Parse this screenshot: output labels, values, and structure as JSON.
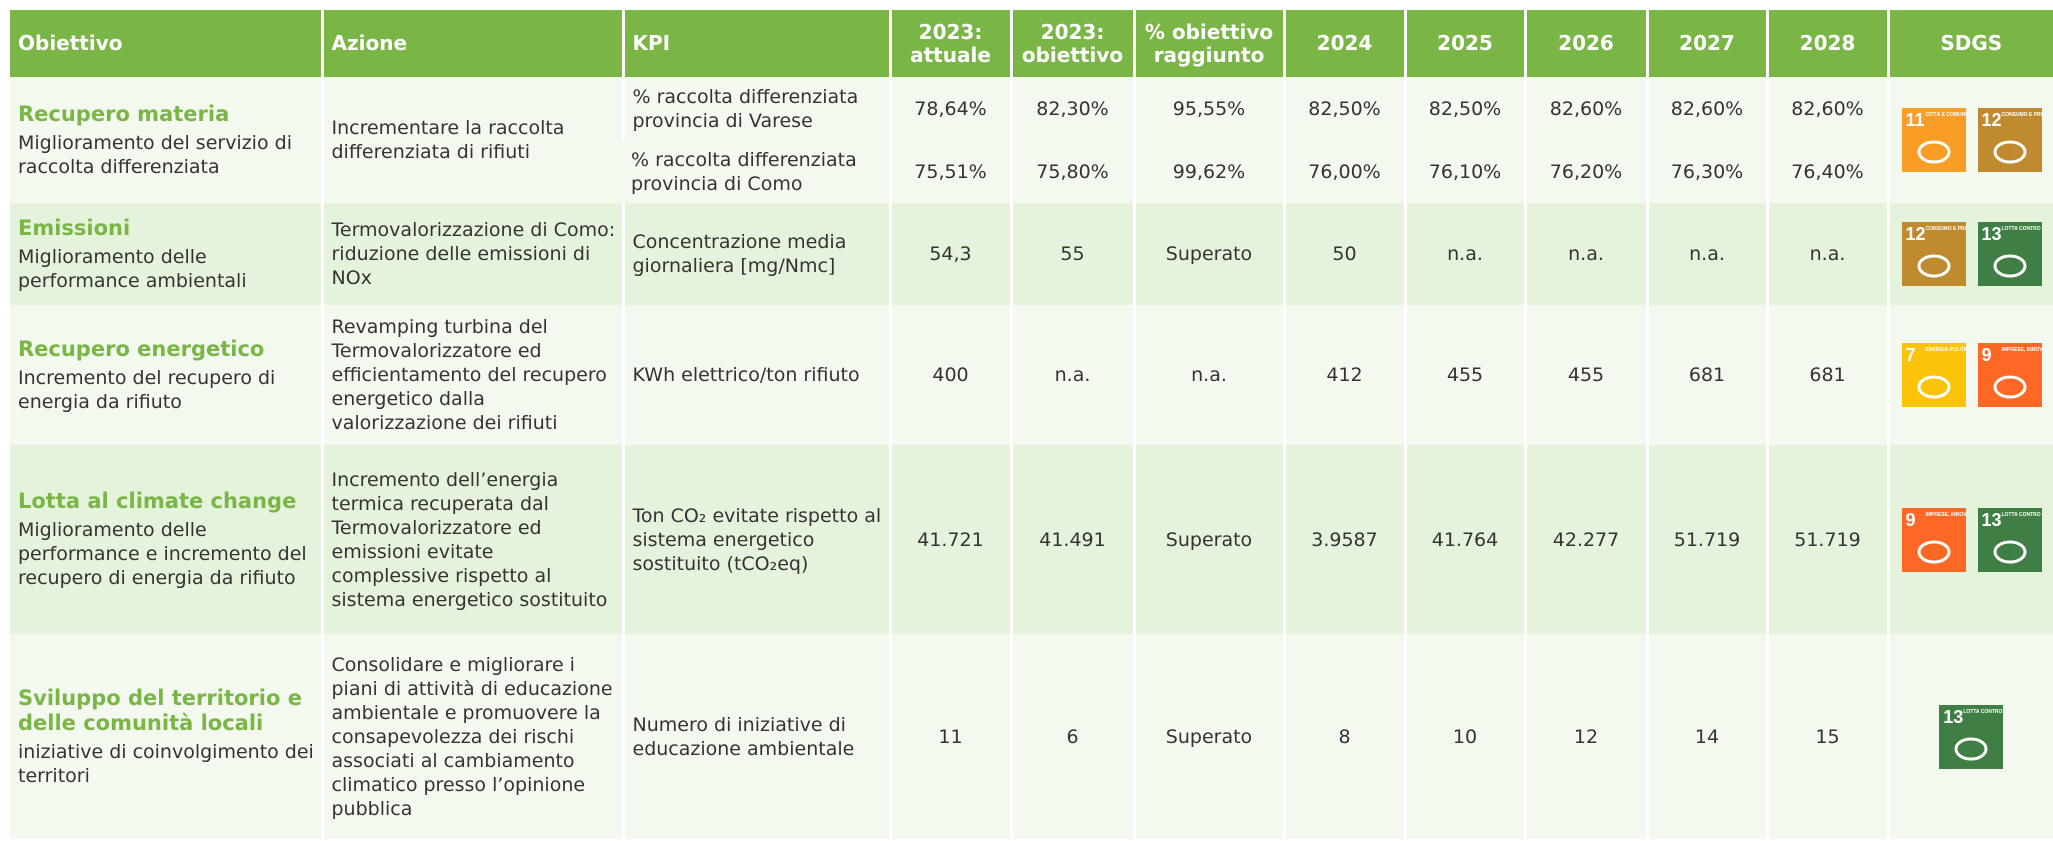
{
  "table": {
    "header": [
      "Obiettivo",
      "Azione",
      "KPI",
      "2023: attuale",
      "2023: obiettivo",
      "% obiettivo raggiunto",
      "2024",
      "2025",
      "2026",
      "2027",
      "2028",
      "SDGS"
    ],
    "rows": [
      {
        "title": "Recupero materia",
        "description": "Miglioramento del servizio di raccolta differenziata",
        "action": "Incrementare la raccolta differenziata di rifiuti",
        "kpis": [
          {
            "kpi": "% raccolta differenziata provincia di Varese",
            "values": [
              "78,64%",
              "82,30%",
              "95,55%",
              "82,50%",
              "82,50%",
              "82,60%",
              "82,60%",
              "82,60%"
            ]
          },
          {
            "kpi": "% raccolta differenziata provincia di Como",
            "values": [
              "75,51%",
              "75,80%",
              "99,62%",
              "76,00%",
              "76,10%",
              "76,20%",
              "76,30%",
              "76,40%"
            ]
          }
        ],
        "sdgs": [
          {
            "number": "11",
            "label": "CITTÀ E COMUNITÀ SOSTENIBILI",
            "color": "#f99d26"
          },
          {
            "number": "12",
            "label": "CONSUMO E PRODUZIONE RESPONSABILI",
            "color": "#bf8b2e"
          }
        ]
      },
      {
        "title": "Emissioni",
        "description": "Miglioramento delle performance ambientali",
        "action": "Termovalorizzazione di Como: riduzione delle emissioni di NOx",
        "kpis": [
          {
            "kpi": "Concentrazione media giornaliera [mg/Nmc]",
            "values": [
              "54,3",
              "55",
              "Superato",
              "50",
              "n.a.",
              "n.a.",
              "n.a.",
              "n.a."
            ]
          }
        ],
        "sdgs": [
          {
            "number": "12",
            "label": "CONSUMO E PRODUZIONE RESPONSABILI",
            "color": "#bf8b2e"
          },
          {
            "number": "13",
            "label": "LOTTA CONTRO IL CAMBIAMENTO CLIMATICO",
            "color": "#3f7e44"
          }
        ]
      },
      {
        "title": "Recupero energetico",
        "description": "Incremento del recupero di energia da rifiuto",
        "action": "Revamping turbina del Termovalorizzatore ed efficientamento del recupero energetico dalla valorizzazione dei rifiuti",
        "kpis": [
          {
            "kpi": "KWh elettrico/ton rifiuto",
            "values": [
              "400",
              "n.a.",
              "n.a.",
              "412",
              "455",
              "455",
              "681",
              "681"
            ]
          }
        ],
        "sdgs": [
          {
            "number": "7",
            "label": "ENERGIA PULITA E ACCESSIBILE",
            "color": "#fcc30b"
          },
          {
            "number": "9",
            "label": "IMPRESE, INNOVAZIONE E INFRASTRUTTURE",
            "color": "#fd6925"
          }
        ]
      },
      {
        "title": "Lotta al climate change",
        "description": "Miglioramento delle performance e incremento del recupero di energia da rifiuto",
        "action": "Incremento dell’energia termica recuperata dal Termovalorizzatore ed emissioni evitate complessive rispetto al sistema energetico sostituito",
        "kpis": [
          {
            "kpi": "Ton CO₂ evitate rispetto al sistema energetico sostituito (tCO₂eq)",
            "values": [
              "41.721",
              "41.491",
              "Superato",
              "3.9587",
              "41.764",
              "42.277",
              "51.719",
              "51.719"
            ]
          }
        ],
        "sdgs": [
          {
            "number": "9",
            "label": "IMPRESE, INNOVAZIONE E INFRASTRUTTURE",
            "color": "#fd6925"
          },
          {
            "number": "13",
            "label": "LOTTA CONTRO IL CAMBIAMENTO CLIMATICO",
            "color": "#3f7e44"
          }
        ]
      },
      {
        "title": "Sviluppo del territorio e delle comunità locali",
        "description": "iniziative di coinvolgimento dei territori",
        "action": "Consolidare e migliorare i piani di attività di educazione ambientale e promuovere la consapevolezza dei rischi associati al cambiamento climatico presso l’opinione pubblica",
        "kpis": [
          {
            "kpi": "Numero di iniziative di educazione ambientale",
            "values": [
              "11",
              "6",
              "Superato",
              "8",
              "10",
              "12",
              "14",
              "15"
            ]
          }
        ],
        "sdgs": [
          {
            "number": "13",
            "label": "LOTTA CONTRO IL CAMBIAMENTO CLIMATICO",
            "color": "#3f7e44"
          }
        ]
      }
    ]
  }
}
